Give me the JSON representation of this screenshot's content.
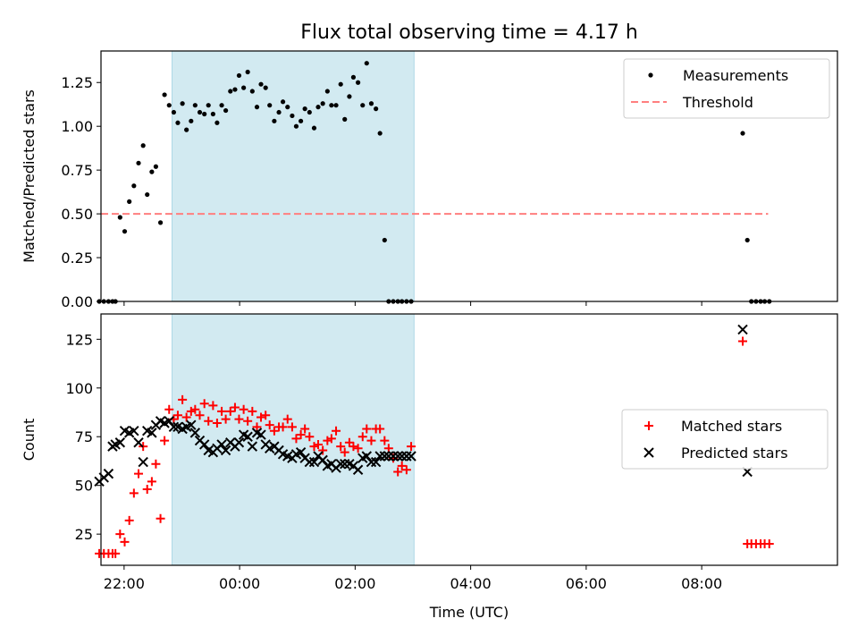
{
  "title": "Flux total observing time = 4.17 h",
  "colors": {
    "highlight": "#add8e6",
    "measure": "#000000",
    "threshold": "#ff7f7f",
    "matched": "#ff0000",
    "predicted": "#000000"
  },
  "chart_data": [
    {
      "type": "scatter",
      "ylabel": "Matched/Predicted stars",
      "xlim": [
        -2.4,
        10.35
      ],
      "ylim": [
        0,
        1.43
      ],
      "yticks": [
        0,
        0.25,
        0.5,
        0.75,
        1.0,
        1.25
      ],
      "ytick_labels": [
        "0.00",
        "0.25",
        "0.50",
        "0.75",
        "1.00",
        "1.25"
      ],
      "highlight_span": [
        -1.17,
        3.02
      ],
      "threshold": {
        "y": 0.5,
        "x_range": [
          -2.4,
          9.15
        ]
      },
      "legend": {
        "position": "top-right",
        "entries": [
          "Measurements",
          "Threshold"
        ]
      },
      "series": [
        {
          "name": "Measurements",
          "marker": "dot",
          "x": [
            -2.43,
            -2.35,
            -2.27,
            -2.2,
            -2.15,
            -2.07,
            -1.99,
            -1.91,
            -1.83,
            -1.75,
            -1.67,
            -1.6,
            -1.52,
            -1.45,
            -1.37,
            -1.3,
            -1.22,
            -1.14,
            -1.07,
            -0.99,
            -0.92,
            -0.84,
            -0.77,
            -0.69,
            -0.61,
            -0.54,
            -0.46,
            -0.39,
            -0.31,
            -0.24,
            -0.16,
            -0.08,
            -0.01,
            0.07,
            0.14,
            0.22,
            0.3,
            0.37,
            0.45,
            0.52,
            0.6,
            0.68,
            0.75,
            0.83,
            0.91,
            0.98,
            1.06,
            1.13,
            1.21,
            1.29,
            1.36,
            1.44,
            1.52,
            1.59,
            1.67,
            1.75,
            1.82,
            1.9,
            1.97,
            2.05,
            2.13,
            2.2,
            2.28,
            2.36,
            2.43,
            2.51,
            2.58,
            2.66,
            2.74,
            2.81,
            2.89,
            2.97,
            8.71,
            8.79,
            8.86,
            8.94,
            9.02,
            9.09,
            9.17
          ],
          "y": [
            0.0,
            0.0,
            0.0,
            0.0,
            0.0,
            0.48,
            0.4,
            0.57,
            0.66,
            0.79,
            0.89,
            0.61,
            0.74,
            0.77,
            0.45,
            1.18,
            1.12,
            1.08,
            1.02,
            1.13,
            0.98,
            1.03,
            1.12,
            1.08,
            1.07,
            1.12,
            1.07,
            1.02,
            1.12,
            1.09,
            1.2,
            1.21,
            1.29,
            1.22,
            1.31,
            1.2,
            1.11,
            1.24,
            1.22,
            1.12,
            1.03,
            1.08,
            1.14,
            1.11,
            1.06,
            1.0,
            1.03,
            1.1,
            1.08,
            0.99,
            1.11,
            1.13,
            1.2,
            1.12,
            1.12,
            1.24,
            1.04,
            1.17,
            1.28,
            1.25,
            1.12,
            1.36,
            1.13,
            1.1,
            0.96,
            0.35,
            0.0,
            0.0,
            0.0,
            0.0,
            0.0,
            0.0,
            0.96,
            0.35,
            0.0,
            0.0,
            0.0,
            0.0,
            0.0
          ]
        }
      ]
    },
    {
      "type": "scatter",
      "ylabel": "Count",
      "xlabel": "Time (UTC)",
      "xlim": [
        -2.4,
        10.35
      ],
      "ylim": [
        9,
        138
      ],
      "yticks": [
        25,
        50,
        75,
        100,
        125
      ],
      "ytick_labels": [
        "25",
        "50",
        "75",
        "100",
        "125"
      ],
      "xticks": [
        -2,
        0,
        2,
        4,
        6,
        8
      ],
      "xtick_labels": [
        "22:00",
        "00:00",
        "02:00",
        "04:00",
        "06:00",
        "08:00"
      ],
      "highlight_span": [
        -1.17,
        3.02
      ],
      "legend": {
        "position": "center-right",
        "entries": [
          "Matched stars",
          "Predicted stars"
        ]
      },
      "series": [
        {
          "name": "Matched stars",
          "marker": "plus",
          "x": [
            -2.43,
            -2.35,
            -2.27,
            -2.2,
            -2.15,
            -2.07,
            -1.99,
            -1.91,
            -1.83,
            -1.75,
            -1.67,
            -1.6,
            -1.52,
            -1.45,
            -1.37,
            -1.3,
            -1.22,
            -1.14,
            -1.07,
            -0.99,
            -0.92,
            -0.84,
            -0.77,
            -0.69,
            -0.61,
            -0.54,
            -0.46,
            -0.39,
            -0.31,
            -0.24,
            -0.16,
            -0.08,
            -0.01,
            0.07,
            0.14,
            0.22,
            0.3,
            0.37,
            0.45,
            0.52,
            0.6,
            0.68,
            0.75,
            0.83,
            0.91,
            0.98,
            1.06,
            1.13,
            1.21,
            1.29,
            1.36,
            1.44,
            1.52,
            1.59,
            1.67,
            1.75,
            1.82,
            1.9,
            1.97,
            2.05,
            2.13,
            2.2,
            2.28,
            2.36,
            2.43,
            2.51,
            2.58,
            2.66,
            2.74,
            2.81,
            2.89,
            2.97,
            8.71,
            8.79,
            8.86,
            8.94,
            9.02,
            9.09,
            9.17
          ],
          "y": [
            15,
            15,
            15,
            15,
            15,
            25,
            21,
            32,
            46,
            56,
            70,
            48,
            52,
            61,
            33,
            73,
            89,
            84,
            86,
            94,
            85,
            88,
            89,
            86,
            92,
            83,
            91,
            82,
            88,
            84,
            88,
            90,
            84,
            89,
            83,
            88,
            80,
            85,
            86,
            81,
            78,
            80,
            80,
            84,
            80,
            74,
            76,
            79,
            75,
            70,
            71,
            68,
            73,
            74,
            78,
            70,
            67,
            72,
            70,
            69,
            75,
            79,
            73,
            79,
            79,
            73,
            69,
            64,
            57,
            60,
            58,
            70,
            124,
            20,
            20,
            20,
            20,
            20,
            20
          ]
        },
        {
          "name": "Predicted stars",
          "marker": "x",
          "x": [
            -2.43,
            -2.35,
            -2.27,
            -2.2,
            -2.15,
            -2.07,
            -1.99,
            -1.91,
            -1.83,
            -1.75,
            -1.67,
            -1.6,
            -1.52,
            -1.45,
            -1.37,
            -1.3,
            -1.22,
            -1.14,
            -1.07,
            -0.99,
            -0.92,
            -0.84,
            -0.77,
            -0.69,
            -0.61,
            -0.54,
            -0.46,
            -0.39,
            -0.31,
            -0.24,
            -0.16,
            -0.08,
            -0.01,
            0.07,
            0.14,
            0.22,
            0.3,
            0.37,
            0.45,
            0.52,
            0.6,
            0.68,
            0.75,
            0.83,
            0.91,
            0.98,
            1.06,
            1.13,
            1.21,
            1.29,
            1.36,
            1.44,
            1.52,
            1.59,
            1.67,
            1.75,
            1.82,
            1.9,
            1.97,
            2.05,
            2.13,
            2.2,
            2.28,
            2.36,
            2.43,
            2.51,
            2.58,
            2.66,
            2.74,
            2.81,
            2.89,
            2.97,
            8.71,
            8.79
          ],
          "y": [
            52,
            54,
            56,
            70,
            71,
            72,
            78,
            77,
            78,
            72,
            62,
            78,
            77,
            81,
            83,
            82,
            83,
            80,
            80,
            79,
            80,
            81,
            77,
            73,
            71,
            68,
            67,
            69,
            71,
            68,
            72,
            70,
            72,
            76,
            75,
            70,
            77,
            76,
            71,
            69,
            70,
            68,
            66,
            65,
            64,
            66,
            67,
            64,
            62,
            62,
            65,
            63,
            60,
            61,
            59,
            61,
            61,
            61,
            60,
            58,
            64,
            65,
            62,
            62,
            65,
            65,
            65,
            65,
            65,
            65,
            65,
            65,
            130,
            57
          ]
        }
      ]
    }
  ]
}
